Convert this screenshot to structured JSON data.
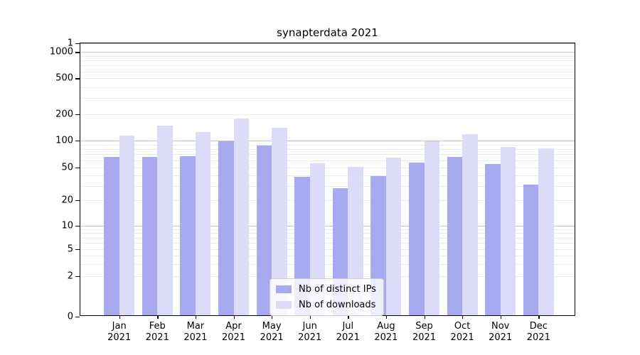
{
  "title": "synapterdata 2021",
  "colors": {
    "distinct_ips": "#a9a9f0",
    "downloads": "#dcdcf8",
    "major_grid": "#c3c3c3",
    "minor_grid": "#eaeaea",
    "axis": "#000000",
    "text": "#000000",
    "legend_border": "#cccccc"
  },
  "legend": {
    "items": [
      {
        "label": "Nb of distinct IPs",
        "color_key": "distinct_ips"
      },
      {
        "label": "Nb of downloads",
        "color_key": "downloads"
      }
    ]
  },
  "y_axis": {
    "tick_labels": [
      "0",
      "1",
      "2",
      "5",
      "10",
      "20",
      "50",
      "100",
      "200",
      "500",
      "1000"
    ],
    "tick_values": [
      0,
      1,
      2,
      5,
      10,
      20,
      50,
      100,
      200,
      500,
      1000
    ]
  },
  "x_axis": {
    "months": [
      "Jan",
      "Feb",
      "Mar",
      "Apr",
      "May",
      "Jun",
      "Jul",
      "Aug",
      "Sep",
      "Oct",
      "Nov",
      "Dec"
    ],
    "year": "2021"
  },
  "chart_data": {
    "type": "bar",
    "title": "synapterdata 2021",
    "categories": [
      "Jan 2021",
      "Feb 2021",
      "Mar 2021",
      "Apr 2021",
      "May 2021",
      "Jun 2021",
      "Jul 2021",
      "Aug 2021",
      "Sep 2021",
      "Oct 2021",
      "Nov 2021",
      "Dec 2021"
    ],
    "series": [
      {
        "name": "Nb of distinct IPs",
        "values": [
          63,
          63,
          65,
          95,
          85,
          37,
          27,
          38,
          55,
          63,
          53,
          30
        ]
      },
      {
        "name": "Nb of downloads",
        "values": [
          110,
          143,
          119,
          170,
          135,
          54,
          49,
          62,
          95,
          113,
          82,
          78
        ]
      }
    ],
    "xlabel": "",
    "ylabel": "",
    "yscale": "symlog",
    "ylim": [
      0,
      1250
    ],
    "yticks": [
      0,
      1,
      2,
      5,
      10,
      20,
      50,
      100,
      200,
      500,
      1000
    ],
    "grid": "horizontal, major (powers of 10) dark + log minors faint",
    "legend_position": "inside plot, bottom center"
  }
}
